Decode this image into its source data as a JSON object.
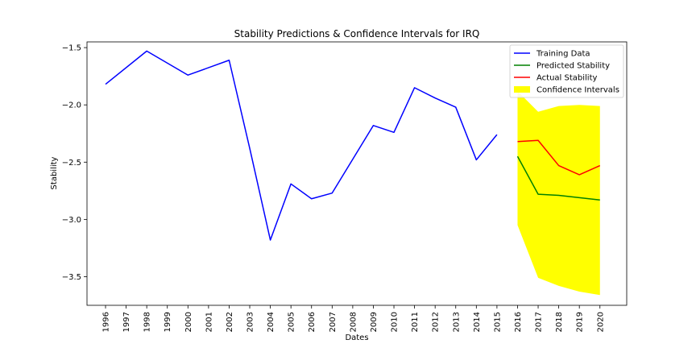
{
  "chart_data": {
    "type": "line",
    "title": "Stability Predictions & Confidence Intervals for IRQ",
    "xlabel": "Dates",
    "ylabel": "Stability",
    "x_ticks": [
      "1996",
      "1997",
      "1998",
      "1999",
      "2000",
      "2001",
      "2002",
      "2003",
      "2004",
      "2005",
      "2006",
      "2007",
      "2008",
      "2009",
      "2010",
      "2011",
      "2012",
      "2013",
      "2014",
      "2015",
      "2016",
      "2017",
      "2018",
      "2019",
      "2020"
    ],
    "xlim": [
      1995.1,
      2021.3
    ],
    "ylim": [
      -3.75,
      -1.45
    ],
    "y_ticks": [
      -1.5,
      -2.0,
      -2.5,
      -3.0,
      -3.5
    ],
    "y_tick_labels": [
      "−1.5",
      "−2.0",
      "−2.5",
      "−3.0",
      "−3.5"
    ],
    "grid": false,
    "legend_position": "top-right",
    "series": [
      {
        "name": "Training Data",
        "color": "#0000ff",
        "x": [
          1996,
          1998,
          2000,
          2002,
          2003,
          2004,
          2005,
          2006,
          2007,
          2009,
          2010,
          2011,
          2012,
          2013,
          2014,
          2015
        ],
        "y": [
          -1.82,
          -1.53,
          -1.74,
          -1.61,
          -2.38,
          -3.18,
          -2.69,
          -2.82,
          -2.77,
          -2.18,
          -2.24,
          -1.85,
          -1.94,
          -2.02,
          -2.48,
          -2.26
        ]
      },
      {
        "name": "Predicted Stability",
        "color": "#008000",
        "x": [
          2016,
          2017,
          2018,
          2019,
          2020
        ],
        "y": [
          -2.45,
          -2.78,
          -2.79,
          -2.81,
          -2.83
        ]
      },
      {
        "name": "Actual Stability",
        "color": "#ff0000",
        "x": [
          2016,
          2017,
          2018,
          2019,
          2020
        ],
        "y": [
          -2.32,
          -2.31,
          -2.53,
          -2.61,
          -2.53
        ]
      }
    ],
    "confidence_interval": {
      "name": "Confidence Intervals",
      "color": "#ffff00",
      "x": [
        2016,
        2017,
        2018,
        2019,
        2020
      ],
      "upper": [
        -1.88,
        -2.06,
        -2.01,
        -2.0,
        -2.01
      ],
      "lower": [
        -3.05,
        -3.51,
        -3.58,
        -3.63,
        -3.66
      ]
    }
  }
}
